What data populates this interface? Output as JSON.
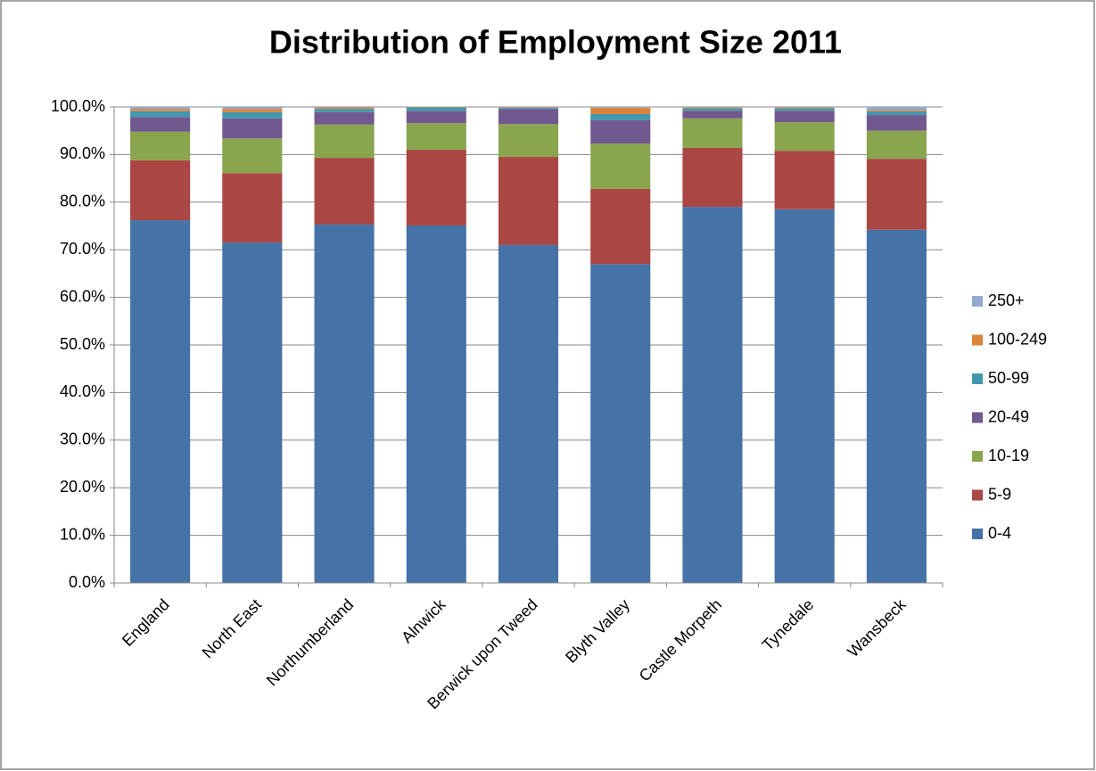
{
  "chart_data": {
    "type": "stacked_bar",
    "title": "Distribution of Employment Size 2011",
    "categories": [
      "England",
      "North East",
      "Northumberland",
      "Alnwick",
      "Berwick upon Tweed",
      "Blyth Valley",
      "Castle Morpeth",
      "Tynedale",
      "Wansbeck"
    ],
    "series": [
      {
        "name": "0-4",
        "color": "#4572a7",
        "values": [
          76.2,
          71.5,
          75.3,
          75.1,
          71.0,
          67.0,
          79.0,
          78.5,
          74.2
        ]
      },
      {
        "name": "5-9",
        "color": "#aa4643",
        "values": [
          12.6,
          14.6,
          14.0,
          15.9,
          18.5,
          15.8,
          12.4,
          12.3,
          14.9
        ]
      },
      {
        "name": "10-19",
        "color": "#89a54e",
        "values": [
          6.0,
          7.3,
          7.0,
          5.6,
          6.9,
          9.5,
          6.2,
          6.0,
          5.9
        ]
      },
      {
        "name": "20-49",
        "color": "#71588f",
        "values": [
          3.1,
          4.2,
          2.6,
          2.6,
          3.2,
          4.9,
          1.6,
          2.4,
          3.3
        ]
      },
      {
        "name": "50-99",
        "color": "#4198af",
        "values": [
          1.2,
          1.3,
          0.7,
          0.7,
          0.2,
          1.3,
          0.5,
          0.5,
          0.8
        ]
      },
      {
        "name": "100-249",
        "color": "#db843d",
        "values": [
          0.5,
          0.7,
          0.3,
          0.1,
          0.1,
          1.3,
          0.2,
          0.2,
          0.3
        ]
      },
      {
        "name": "250+",
        "color": "#93a9cf",
        "values": [
          0.4,
          0.4,
          0.1,
          0.1,
          0.1,
          0.2,
          0.1,
          0.1,
          0.6
        ]
      }
    ],
    "ylim": [
      0,
      100
    ],
    "yticks": [
      {
        "value": 0,
        "label": "0.0%"
      },
      {
        "value": 10,
        "label": "10.0%"
      },
      {
        "value": 20,
        "label": "20.0%"
      },
      {
        "value": 30,
        "label": "30.0%"
      },
      {
        "value": 40,
        "label": "40.0%"
      },
      {
        "value": 50,
        "label": "50.0%"
      },
      {
        "value": 60,
        "label": "60.0%"
      },
      {
        "value": 70,
        "label": "70.0%"
      },
      {
        "value": 80,
        "label": "80.0%"
      },
      {
        "value": 90,
        "label": "90.0%"
      },
      {
        "value": 100,
        "label": "100.0%"
      }
    ],
    "grid": true,
    "legend": "right"
  }
}
